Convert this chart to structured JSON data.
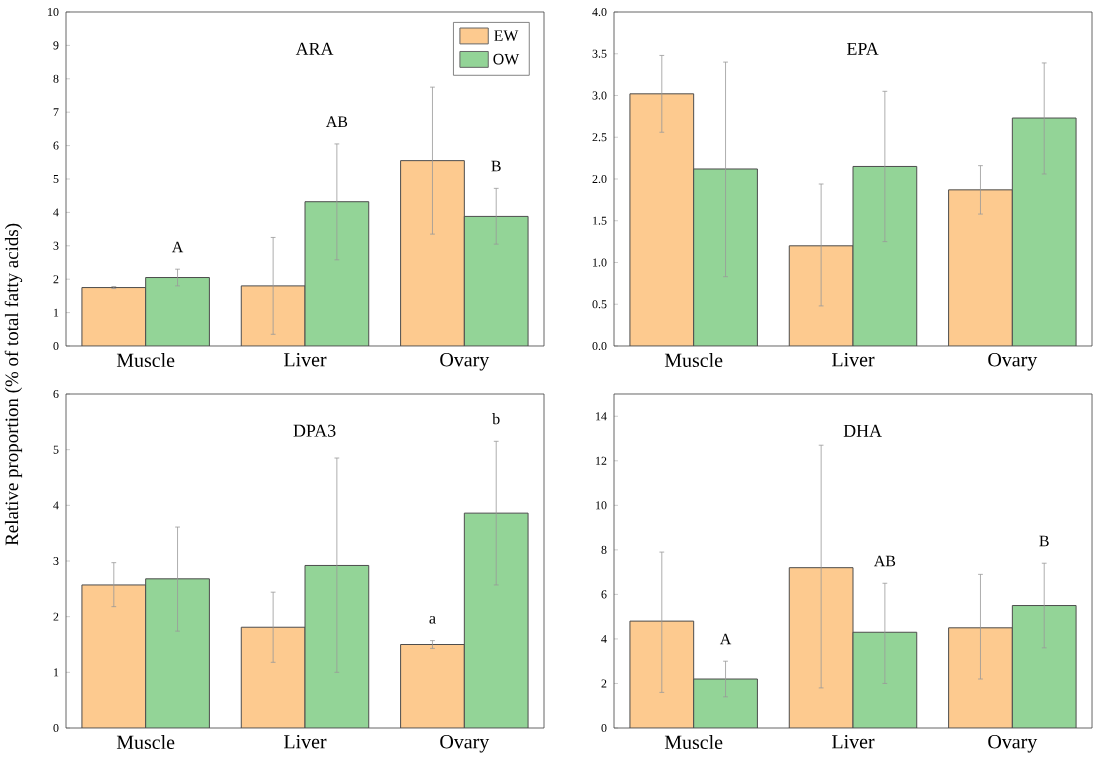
{
  "chart_data": [
    {
      "type": "bar",
      "title": "ARA",
      "ylabel": "Relative proportion (% of total fatty acids)",
      "categories": [
        "Muscle",
        "Liver",
        "Ovary"
      ],
      "ylim": [
        0,
        10
      ],
      "yticks": [
        0,
        1,
        2,
        3,
        4,
        5,
        6,
        7,
        8,
        9,
        10
      ],
      "legend": "top right",
      "series": [
        {
          "name": "EW",
          "color": "#fdca8f",
          "values": [
            1.75,
            1.8,
            5.55
          ],
          "errors": [
            [
              1.72,
              1.78
            ],
            [
              0.35,
              3.25
            ],
            [
              3.35,
              7.75
            ]
          ]
        },
        {
          "name": "OW",
          "color": "#93d497",
          "values": [
            2.05,
            4.32,
            3.88
          ],
          "errors": [
            [
              1.8,
              2.3
            ],
            [
              2.58,
              6.05
            ],
            [
              3.05,
              4.72
            ]
          ]
        }
      ],
      "annotations": [
        "A",
        "AB",
        "B"
      ]
    },
    {
      "type": "bar",
      "title": "EPA",
      "categories": [
        "Muscle",
        "Liver",
        "Ovary"
      ],
      "ylim": [
        0,
        4
      ],
      "yticks": [
        {
          "value": 0,
          "label": "0.0"
        },
        0.5,
        {
          "value": 1,
          "label": "1.0"
        },
        1.5,
        {
          "value": 2,
          "label": "2.0"
        },
        2.5,
        {
          "value": 3,
          "label": "3.0"
        },
        3.5,
        {
          "value": 4,
          "label": "4.0"
        }
      ],
      "series": [
        {
          "color": "#fdca8f",
          "values": [
            3.02,
            1.2,
            1.87
          ],
          "errors": [
            [
              2.56,
              3.48
            ],
            [
              0.48,
              1.94
            ],
            [
              1.58,
              2.16
            ]
          ]
        },
        {
          "color": "#93d497",
          "values": [
            2.12,
            2.15,
            2.73
          ],
          "errors": [
            [
              0.83,
              3.4
            ],
            [
              1.25,
              3.05
            ],
            [
              2.06,
              3.39
            ]
          ]
        }
      ]
    },
    {
      "type": "bar",
      "title": "DPA3",
      "categories": [
        "Muscle",
        "Liver",
        "Ovary"
      ],
      "ylim": [
        0,
        6
      ],
      "yticks": [
        0,
        1,
        2,
        3,
        4,
        5,
        6
      ],
      "series": [
        {
          "color": "#fdca8f",
          "values": [
            2.57,
            1.81,
            1.5
          ],
          "errors": [
            [
              2.18,
              2.97
            ],
            [
              1.18,
              2.44
            ],
            [
              1.43,
              1.57
            ]
          ]
        },
        {
          "color": "#93d497",
          "values": [
            2.68,
            2.92,
            3.86
          ],
          "errors": [
            [
              1.74,
              3.61
            ],
            [
              1.0,
              4.85
            ],
            [
              2.57,
              5.15
            ]
          ]
        }
      ],
      "annotations": [
        "a",
        "b"
      ]
    },
    {
      "type": "bar",
      "title": "DHA",
      "categories": [
        "Muscle",
        "Liver",
        "Ovary"
      ],
      "ylim": [
        0,
        15
      ],
      "yticks": [
        0,
        2,
        4,
        6,
        8,
        10,
        12,
        14
      ],
      "series": [
        {
          "color": "#fdca8f",
          "values": [
            4.8,
            7.2,
            4.5
          ],
          "errors": [
            [
              1.6,
              7.9
            ],
            [
              1.8,
              12.7
            ],
            [
              2.2,
              6.9
            ]
          ]
        },
        {
          "color": "#93d497",
          "values": [
            2.2,
            4.3,
            5.5
          ],
          "errors": [
            [
              1.4,
              3.0
            ],
            [
              2.0,
              6.5
            ],
            [
              3.6,
              7.4
            ]
          ]
        }
      ],
      "annotations": [
        "A",
        "AB",
        "B"
      ]
    }
  ]
}
